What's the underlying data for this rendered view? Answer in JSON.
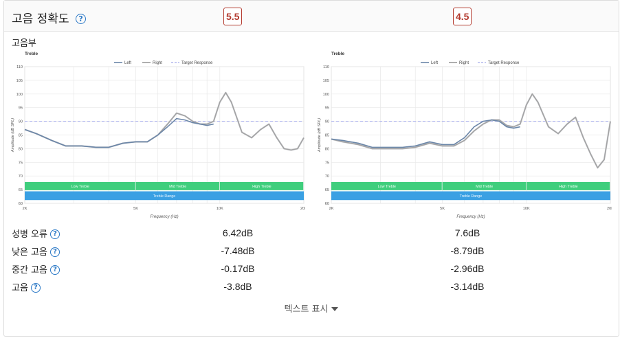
{
  "header": {
    "title": "고음 정확도",
    "help_glyph": "?",
    "score_left": "5.5",
    "score_right": "4.5"
  },
  "section": {
    "label": "고음부"
  },
  "charts": [
    {
      "title": "Treble",
      "legend": [
        "Left",
        "Right",
        "Target Response"
      ],
      "ylabel": "Amplitude (dB SPL)",
      "xlabel": "Frequency (Hz)",
      "y_ticks": [
        "110",
        "105",
        "100",
        "95",
        "90",
        "85",
        "80",
        "75",
        "70",
        "65",
        "60"
      ],
      "x_ticks": [
        "2K",
        "5K",
        "10K",
        "20K"
      ],
      "bands": [
        "Low Treble",
        "Mid Treble",
        "High Treble"
      ],
      "range_label": "Treble Range"
    },
    {
      "title": "Treble",
      "legend": [
        "Left",
        "Right",
        "Target Response"
      ],
      "ylabel": "Amplitude (dB SPL)",
      "xlabel": "Frequency (Hz)",
      "y_ticks": [
        "110",
        "105",
        "100",
        "95",
        "90",
        "85",
        "80",
        "75",
        "70",
        "65",
        "60"
      ],
      "x_ticks": [
        "2K",
        "5K",
        "10K",
        "20K"
      ],
      "bands": [
        "Low Treble",
        "Mid Treble",
        "High Treble"
      ],
      "range_label": "Treble Range"
    }
  ],
  "chart_data": [
    {
      "type": "line",
      "title": "Treble",
      "xlabel": "Frequency (Hz)",
      "ylabel": "Amplitude (dB SPL)",
      "xscale": "log",
      "xlim": [
        2000,
        20000
      ],
      "ylim": [
        60,
        110
      ],
      "target": 90,
      "series": [
        {
          "name": "Left",
          "x": [
            2000,
            2200,
            2500,
            2800,
            3200,
            3600,
            4000,
            4500,
            5000,
            5500,
            6000,
            6500,
            7000,
            7500,
            8000,
            8500,
            9000,
            9500
          ],
          "y": [
            87,
            85.5,
            83,
            81,
            81,
            80.5,
            80.5,
            82,
            82.5,
            82.5,
            85,
            88,
            91,
            90.5,
            89.5,
            89,
            88.5,
            89
          ]
        },
        {
          "name": "Right",
          "x": [
            2000,
            2200,
            2500,
            2800,
            3200,
            3600,
            4000,
            4500,
            5000,
            5500,
            6000,
            6500,
            7000,
            7500,
            8000,
            8500,
            9000,
            9500,
            10000,
            10500,
            11000,
            12000,
            13000,
            14000,
            15000,
            16000,
            17000,
            18000,
            19000,
            20000
          ],
          "y": [
            87,
            85.5,
            83,
            81,
            81,
            80.5,
            80.5,
            82,
            82.5,
            82.5,
            85,
            89,
            93,
            92,
            90,
            89,
            89,
            90,
            97,
            100.5,
            97,
            86,
            84,
            87,
            89,
            84,
            80,
            79.5,
            80,
            84
          ]
        }
      ]
    },
    {
      "type": "line",
      "title": "Treble",
      "xlabel": "Frequency (Hz)",
      "ylabel": "Amplitude (dB SPL)",
      "xscale": "log",
      "xlim": [
        2000,
        20000
      ],
      "ylim": [
        60,
        110
      ],
      "target": 90,
      "series": [
        {
          "name": "Left",
          "x": [
            2000,
            2200,
            2500,
            2800,
            3200,
            3600,
            4000,
            4500,
            5000,
            5500,
            6000,
            6500,
            7000,
            7500,
            8000,
            8500,
            9000,
            9500
          ],
          "y": [
            83.5,
            83,
            82,
            80.5,
            80.5,
            80.5,
            81,
            82.5,
            81.5,
            81.5,
            84,
            88,
            90,
            90.5,
            90,
            88,
            87.5,
            88
          ]
        },
        {
          "name": "Right",
          "x": [
            2000,
            2200,
            2500,
            2800,
            3200,
            3600,
            4000,
            4500,
            5000,
            5500,
            6000,
            6500,
            7000,
            7500,
            8000,
            8500,
            9000,
            9500,
            10000,
            10500,
            11000,
            12000,
            13000,
            14000,
            15000,
            16000,
            17000,
            18000,
            19000,
            20000
          ],
          "y": [
            83.5,
            82.5,
            81.5,
            80,
            80,
            80,
            80.5,
            82,
            81,
            81,
            83,
            86.5,
            89,
            90.5,
            90.5,
            88.5,
            88,
            89,
            96,
            100,
            97,
            88,
            85.5,
            89,
            91.5,
            84,
            78,
            73,
            76,
            90
          ]
        }
      ]
    }
  ],
  "metrics": [
    {
      "label": "성병 오류",
      "left": "6.42dB",
      "right": "7.6dB"
    },
    {
      "label": "낮은 고음",
      "left": "-7.48dB",
      "right": "-8.79dB"
    },
    {
      "label": "중간 고음",
      "left": "-0.17dB",
      "right": "-2.96dB"
    },
    {
      "label": "고음",
      "left": "-3.8dB",
      "right": "-3.14dB"
    }
  ],
  "footer": {
    "toggle_label": "텍스트 표시"
  },
  "colors": {
    "left_line": "#6b86a8",
    "right_line": "#9a9a9a",
    "target": "#b3b8ee",
    "band_green": "#3fce7d",
    "range_blue": "#3aa0e3",
    "score_red": "#b33a2e",
    "help_blue": "#2a78c6"
  }
}
